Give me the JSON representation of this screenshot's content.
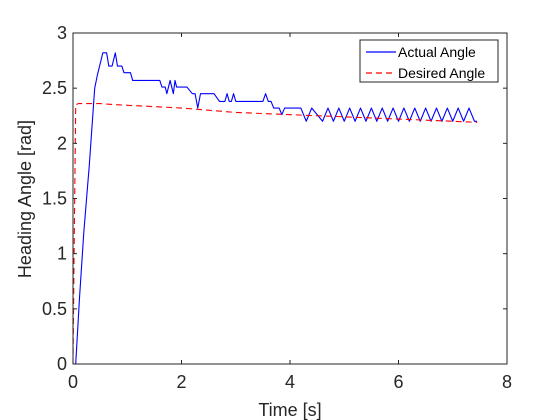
{
  "chart_data": {
    "type": "line",
    "title": "",
    "xlabel": "Time [s]",
    "ylabel": "Heading Angle [rad]",
    "xlim": [
      0,
      8
    ],
    "ylim": [
      0,
      3
    ],
    "xticks": [
      0,
      2,
      4,
      6,
      8
    ],
    "yticks": [
      0,
      0.5,
      1,
      1.5,
      2,
      2.5,
      3
    ],
    "xtick_labels": [
      "0",
      "2",
      "4",
      "6",
      "8"
    ],
    "ytick_labels": [
      "0",
      "0.5",
      "1",
      "1.5",
      "2",
      "2.5",
      "3"
    ],
    "grid": false,
    "box": true,
    "legend_position": "top-right",
    "colors": {
      "axis": "#262626",
      "actual": "#0000ff",
      "desired": "#ff0000"
    },
    "series": [
      {
        "name": "Actual Angle",
        "style": "solid",
        "color": "#0000ff",
        "x": [
          0.0,
          0.05,
          0.12,
          0.2,
          0.3,
          0.4,
          0.45,
          0.5,
          0.55,
          0.58,
          0.62,
          0.66,
          0.72,
          0.78,
          0.82,
          0.86,
          0.9,
          0.94,
          0.98,
          1.02,
          1.06,
          1.1,
          1.14,
          1.18,
          1.22,
          1.26,
          1.3,
          1.4,
          1.5,
          1.6,
          1.64,
          1.67,
          1.7,
          1.73,
          1.76,
          1.79,
          1.82,
          1.85,
          1.88,
          1.91,
          1.94,
          2.0,
          2.1,
          2.2,
          2.25,
          2.3,
          2.35,
          2.4,
          2.5,
          2.6,
          2.7,
          2.8,
          2.84,
          2.88,
          2.92,
          2.96,
          3.0,
          3.04,
          3.08,
          3.12,
          3.16,
          3.2,
          3.3,
          3.4,
          3.5,
          3.55,
          3.6,
          3.65,
          3.7,
          3.75,
          3.8,
          3.85,
          3.9,
          4.0,
          4.1,
          4.2,
          4.3,
          4.4,
          4.5,
          4.6,
          4.7,
          4.8,
          4.9,
          5.0,
          5.1,
          5.2,
          5.3,
          5.4,
          5.5,
          5.6,
          5.7,
          5.8,
          5.9,
          6.0,
          6.1,
          6.2,
          6.3,
          6.4,
          6.5,
          6.6,
          6.7,
          6.8,
          6.9,
          7.0,
          7.1,
          7.2,
          7.3,
          7.4,
          7.45
        ],
        "y": [
          0.0,
          0.0,
          0.6,
          1.2,
          1.8,
          2.5,
          2.62,
          2.72,
          2.82,
          2.82,
          2.82,
          2.7,
          2.7,
          2.82,
          2.7,
          2.7,
          2.7,
          2.64,
          2.64,
          2.64,
          2.64,
          2.57,
          2.57,
          2.57,
          2.57,
          2.57,
          2.57,
          2.57,
          2.57,
          2.57,
          2.51,
          2.51,
          2.51,
          2.45,
          2.51,
          2.57,
          2.51,
          2.45,
          2.57,
          2.51,
          2.51,
          2.51,
          2.51,
          2.45,
          2.45,
          2.32,
          2.45,
          2.45,
          2.45,
          2.45,
          2.38,
          2.38,
          2.45,
          2.38,
          2.38,
          2.45,
          2.38,
          2.38,
          2.38,
          2.38,
          2.38,
          2.38,
          2.38,
          2.38,
          2.38,
          2.45,
          2.38,
          2.38,
          2.32,
          2.32,
          2.32,
          2.26,
          2.32,
          2.32,
          2.32,
          2.32,
          2.2,
          2.32,
          2.26,
          2.2,
          2.32,
          2.2,
          2.32,
          2.2,
          2.32,
          2.2,
          2.32,
          2.2,
          2.32,
          2.2,
          2.32,
          2.2,
          2.32,
          2.2,
          2.32,
          2.2,
          2.32,
          2.2,
          2.32,
          2.2,
          2.32,
          2.2,
          2.32,
          2.2,
          2.32,
          2.2,
          2.32,
          2.2,
          2.2
        ]
      },
      {
        "name": "Desired Angle",
        "style": "dashed",
        "color": "#ff0000",
        "x": [
          0.0,
          0.02,
          0.05,
          0.1,
          0.3,
          0.5,
          0.8,
          1.2,
          1.6,
          2.0,
          2.5,
          3.0,
          3.5,
          4.0,
          4.5,
          5.0,
          5.5,
          6.0,
          6.5,
          7.0,
          7.45
        ],
        "y": [
          0.0,
          1.0,
          2.35,
          2.36,
          2.36,
          2.36,
          2.35,
          2.34,
          2.33,
          2.32,
          2.3,
          2.28,
          2.27,
          2.26,
          2.25,
          2.24,
          2.23,
          2.22,
          2.21,
          2.2,
          2.19
        ]
      }
    ]
  }
}
